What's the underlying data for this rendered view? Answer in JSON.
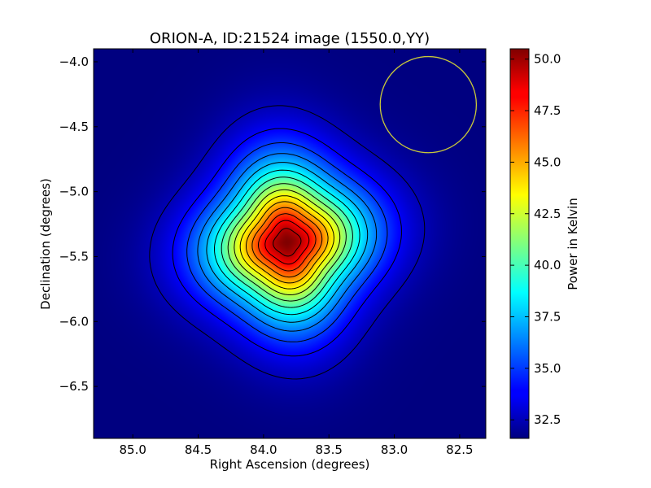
{
  "chart_data": {
    "type": "heatmap",
    "title": "ORION-A, ID:21524 image (1550.0,YY)",
    "xlabel": "Right Ascension (degrees)",
    "ylabel": "Declination (degrees)",
    "xlim": [
      85.3,
      82.3
    ],
    "ylim": [
      -6.9,
      -3.9
    ],
    "x_ticks": [
      85.0,
      84.5,
      84.0,
      83.5,
      83.0,
      82.5
    ],
    "x_tick_labels": [
      "85.0",
      "84.5",
      "84.0",
      "83.5",
      "83.0",
      "82.5"
    ],
    "y_ticks": [
      -4.0,
      -4.5,
      -5.0,
      -5.5,
      -6.0,
      -6.5
    ],
    "y_tick_labels": [
      "−4.0",
      "−4.5",
      "−5.0",
      "−5.5",
      "−6.0",
      "−6.5"
    ],
    "colormap": "jet",
    "colorbar": {
      "label": "Power in Kelvin",
      "range": [
        31.6,
        50.5
      ],
      "ticks": [
        32.5,
        35.0,
        37.5,
        40.0,
        42.5,
        45.0,
        47.5,
        50.0
      ],
      "tick_labels": [
        "32.5",
        "35.0",
        "37.5",
        "40.0",
        "42.5",
        "45.0",
        "47.5",
        "50.0"
      ]
    },
    "peak": {
      "ra": 83.82,
      "dec": -5.39,
      "value": 50.5
    },
    "background_value": 31.6,
    "contour_levels": [
      32.6,
      33.8,
      35.0,
      36.2,
      37.4,
      38.6,
      39.8,
      41.0,
      42.2,
      43.4,
      44.6,
      45.8,
      47.0,
      48.2,
      49.4
    ],
    "contour_color": "#000000",
    "beam": {
      "ra": 82.74,
      "dec": -4.33,
      "radius_deg": 0.37,
      "color": "#c8c83a"
    }
  }
}
